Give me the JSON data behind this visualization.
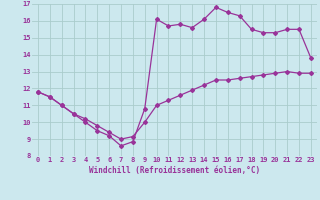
{
  "xlabel": "Windchill (Refroidissement éolien,°C)",
  "bg_color": "#cce8ee",
  "line_color": "#993399",
  "grid_color": "#aacccc",
  "xlim": [
    -0.5,
    23.5
  ],
  "ylim": [
    8,
    17
  ],
  "xticks": [
    0,
    1,
    2,
    3,
    4,
    5,
    6,
    7,
    8,
    9,
    10,
    11,
    12,
    13,
    14,
    15,
    16,
    17,
    18,
    19,
    20,
    21,
    22,
    23
  ],
  "yticks": [
    8,
    9,
    10,
    11,
    12,
    13,
    14,
    15,
    16,
    17
  ],
  "curve1_x": [
    0,
    1,
    2,
    3,
    4,
    5,
    6,
    7,
    8,
    9,
    10,
    11,
    12,
    13,
    14,
    15,
    16,
    17,
    18,
    19,
    20,
    21,
    22,
    23
  ],
  "curve1_y": [
    11.8,
    11.5,
    11.0,
    10.5,
    10.0,
    9.5,
    9.2,
    8.6,
    8.85,
    10.8,
    16.1,
    15.7,
    15.8,
    15.6,
    16.1,
    16.8,
    16.5,
    16.3,
    15.5,
    15.3,
    15.3,
    15.5,
    15.5,
    13.8
  ],
  "curve2_x": [
    0,
    1,
    2,
    3,
    4,
    5,
    6,
    7,
    8,
    9,
    10,
    11,
    12,
    13,
    14,
    15,
    16,
    17,
    18,
    19,
    20,
    21,
    22,
    23
  ],
  "curve2_y": [
    11.8,
    11.5,
    11.0,
    10.5,
    10.2,
    9.8,
    9.4,
    9.0,
    9.15,
    10.0,
    11.0,
    11.3,
    11.6,
    11.9,
    12.2,
    12.5,
    12.5,
    12.6,
    12.7,
    12.8,
    12.9,
    13.0,
    12.9,
    12.9
  ]
}
